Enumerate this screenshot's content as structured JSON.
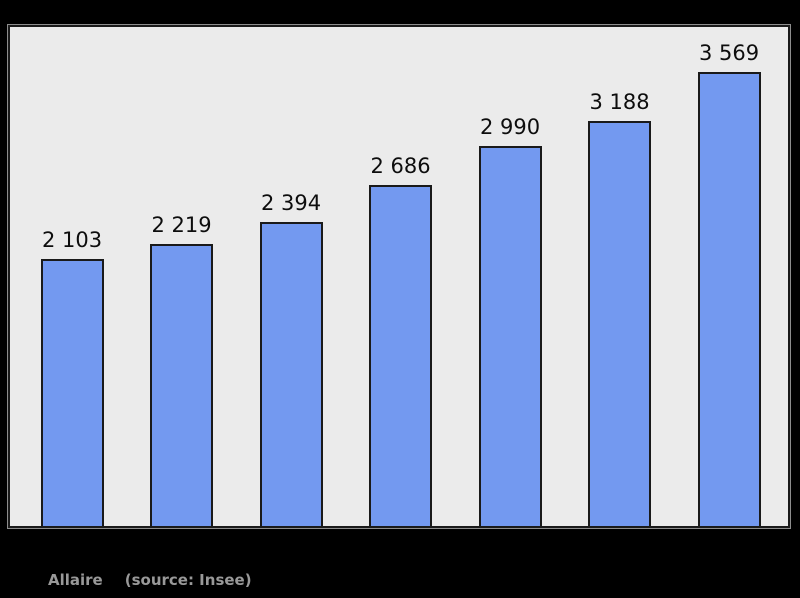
{
  "chart_data": {
    "type": "bar",
    "values": [
      2103,
      2219,
      2394,
      2686,
      2990,
      3188,
      3569
    ],
    "labels": [
      "2 103",
      "2 219",
      "2 394",
      "2 686",
      "2 990",
      "3 188",
      "3 569"
    ],
    "title": "",
    "xlabel": "",
    "ylabel": "",
    "ylim": [
      0,
      3925
    ],
    "grid": false,
    "legend": "none",
    "data_labels_position": "above-bars"
  },
  "caption": {
    "place": "Allaire",
    "source": "(source: Insee)"
  },
  "colors": {
    "background": "#000000",
    "plot_bg": "#ebebeb",
    "frame_border": "#1a1a1a",
    "bar_fill": "#7399f0",
    "bar_border": "#1a1a1a",
    "label_color": "#0d0d0d",
    "caption_color": "#999999"
  }
}
